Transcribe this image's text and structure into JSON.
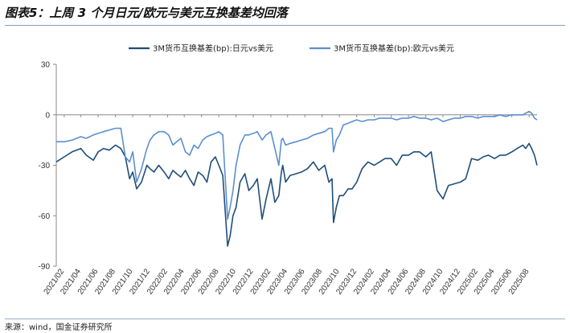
{
  "figure": {
    "title": "图表5：上周 3 个月日元/欧元与美元互换基差均回落",
    "source": "来源：wind，国金证券研究所"
  },
  "chart_data": {
    "type": "line",
    "title": "图表5：上周 3 个月日元/欧元与美元互换基差均回落",
    "xlabel": "",
    "ylabel": "",
    "ylim": [
      -90,
      30
    ],
    "yticks": [
      30,
      0,
      -30,
      -60,
      -90
    ],
    "x_ticks": [
      "2021/02",
      "2021/04",
      "2021/06",
      "2021/08",
      "2021/10",
      "2021/12",
      "2022/02",
      "2022/04",
      "2022/06",
      "2022/08",
      "2022/10",
      "2022/12",
      "2023/02",
      "2023/04",
      "2023/06",
      "2023/08",
      "2023/10",
      "2023/12",
      "2024/02",
      "2024/04",
      "2024/06",
      "2024/08",
      "2024/10",
      "2024/12",
      "2025/02",
      "2025/04",
      "2025/06",
      "2025/08"
    ],
    "grid": false,
    "legend_position": "top",
    "x": [
      "2021-01-04",
      "2021-02-01",
      "2021-03-01",
      "2021-04-01",
      "2021-04-20",
      "2021-05-15",
      "2021-06-01",
      "2021-06-20",
      "2021-07-10",
      "2021-08-01",
      "2021-08-20",
      "2021-09-05",
      "2021-09-20",
      "2021-10-01",
      "2021-10-15",
      "2021-11-01",
      "2021-11-20",
      "2021-12-01",
      "2021-12-15",
      "2022-01-01",
      "2022-01-20",
      "2022-02-05",
      "2022-02-20",
      "2022-03-05",
      "2022-03-20",
      "2022-04-05",
      "2022-04-20",
      "2022-05-05",
      "2022-05-20",
      "2022-06-05",
      "2022-06-20",
      "2022-07-05",
      "2022-07-20",
      "2022-08-01",
      "2022-08-15",
      "2022-09-01",
      "2022-09-10",
      "2022-09-20",
      "2022-10-01",
      "2022-10-15",
      "2022-11-01",
      "2022-11-15",
      "2022-12-01",
      "2022-12-15",
      "2023-01-01",
      "2023-01-15",
      "2023-02-01",
      "2023-02-15",
      "2023-03-01",
      "2023-03-10",
      "2023-03-15",
      "2023-03-25",
      "2023-04-10",
      "2023-05-01",
      "2023-05-20",
      "2023-06-10",
      "2023-07-01",
      "2023-07-20",
      "2023-08-10",
      "2023-08-25",
      "2023-09-05",
      "2023-09-10",
      "2023-09-20",
      "2023-10-01",
      "2023-10-15",
      "2023-11-01",
      "2023-11-15",
      "2023-12-01",
      "2023-12-20",
      "2024-01-10",
      "2024-02-01",
      "2024-02-20",
      "2024-03-10",
      "2024-04-01",
      "2024-04-20",
      "2024-05-10",
      "2024-06-01",
      "2024-06-20",
      "2024-07-10",
      "2024-08-01",
      "2024-08-20",
      "2024-09-10",
      "2024-10-01",
      "2024-10-20",
      "2024-11-10",
      "2024-12-01",
      "2024-12-20",
      "2025-01-10",
      "2025-02-01",
      "2025-02-20",
      "2025-03-10",
      "2025-04-01",
      "2025-04-20",
      "2025-05-10",
      "2025-06-01",
      "2025-06-20",
      "2025-07-10",
      "2025-07-20",
      "2025-08-01",
      "2025-08-10",
      "2025-08-20",
      "2025-08-29"
    ],
    "series": [
      {
        "name": "3M货币互换基差(bp):日元vs美元",
        "color": "#1f4e79",
        "values": [
          -28,
          -25,
          -22,
          -20,
          -24,
          -27,
          -22,
          -20,
          -21,
          -18,
          -20,
          -25,
          -38,
          -34,
          -44,
          -40,
          -30,
          -32,
          -34,
          -30,
          -34,
          -38,
          -33,
          -35,
          -37,
          -33,
          -38,
          -42,
          -34,
          -36,
          -40,
          -28,
          -25,
          -30,
          -36,
          -78,
          -72,
          -60,
          -55,
          -40,
          -35,
          -45,
          -42,
          -38,
          -62,
          -50,
          -38,
          -52,
          -48,
          -34,
          -30,
          -40,
          -36,
          -35,
          -34,
          -32,
          -28,
          -33,
          -30,
          -40,
          -38,
          -64,
          -55,
          -48,
          -48,
          -44,
          -44,
          -40,
          -32,
          -28,
          -30,
          -28,
          -26,
          -26,
          -30,
          -24,
          -24,
          -22,
          -22,
          -25,
          -22,
          -45,
          -50,
          -42,
          -41,
          -40,
          -38,
          -26,
          -27,
          -25,
          -24,
          -26,
          -24,
          -24,
          -22,
          -20,
          -18,
          -20,
          -17,
          -20,
          -24,
          -30
        ]
      },
      {
        "name": "3M货币互换基差(bp):欧元vs美元",
        "color": "#5b8fd0",
        "values": [
          -16,
          -16,
          -15,
          -13,
          -14,
          -12,
          -11,
          -10,
          -9,
          -8,
          -8,
          -25,
          -28,
          -22,
          -40,
          -32,
          -20,
          -15,
          -12,
          -10,
          -10,
          -12,
          -18,
          -16,
          -14,
          -22,
          -24,
          -18,
          -20,
          -15,
          -13,
          -12,
          -11,
          -10,
          -12,
          -62,
          -55,
          -45,
          -30,
          -18,
          -12,
          -12,
          -11,
          -10,
          -15,
          -12,
          -10,
          -20,
          -30,
          -15,
          -14,
          -18,
          -17,
          -16,
          -15,
          -14,
          -12,
          -11,
          -10,
          -8,
          -8,
          -22,
          -15,
          -12,
          -6,
          -5,
          -4,
          -3,
          -4,
          -3,
          -3,
          -2,
          -2,
          -2,
          -3,
          -2,
          -2,
          -1,
          -2,
          -2,
          -3,
          -2,
          -4,
          -3,
          -2,
          -2,
          -1,
          -1,
          -2,
          -1,
          -1,
          -1,
          0,
          -1,
          0,
          0,
          0,
          1,
          2,
          1,
          -2,
          -3
        ]
      }
    ]
  }
}
